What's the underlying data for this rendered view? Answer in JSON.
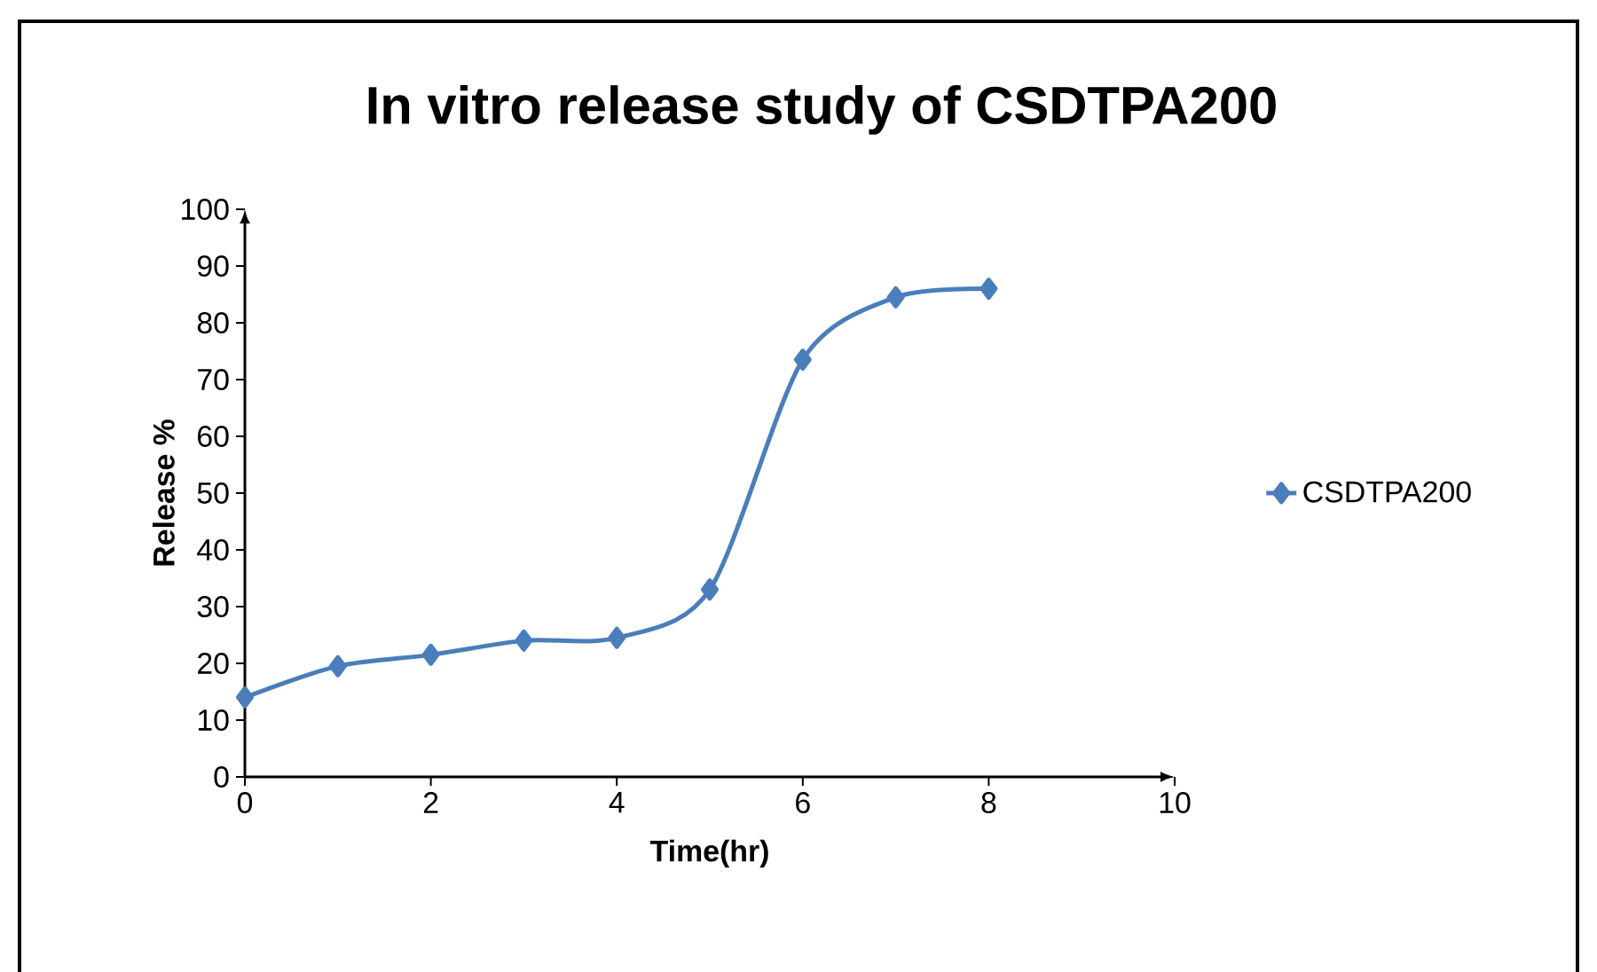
{
  "chart_data": {
    "type": "line",
    "title": "In vitro release study of CSDTPA200",
    "xlabel": "Time(hr)",
    "ylabel": "Release %",
    "x": [
      0,
      1,
      2,
      3,
      4,
      5,
      6,
      7,
      8
    ],
    "series": [
      {
        "name": "CSDTPA200",
        "color": "#4a7ebb",
        "values": [
          14,
          19.5,
          21.5,
          24,
          24.5,
          33,
          73.5,
          84.5,
          86
        ]
      }
    ],
    "xlim": [
      0,
      10
    ],
    "xticks": [
      0,
      2,
      4,
      6,
      8,
      10
    ],
    "ylim": [
      0,
      100
    ],
    "yticks": [
      0,
      10,
      20,
      30,
      40,
      50,
      60,
      70,
      80,
      90,
      100
    ],
    "marker": "diamond",
    "line_style": "solid",
    "grid": false,
    "legend": "right"
  }
}
